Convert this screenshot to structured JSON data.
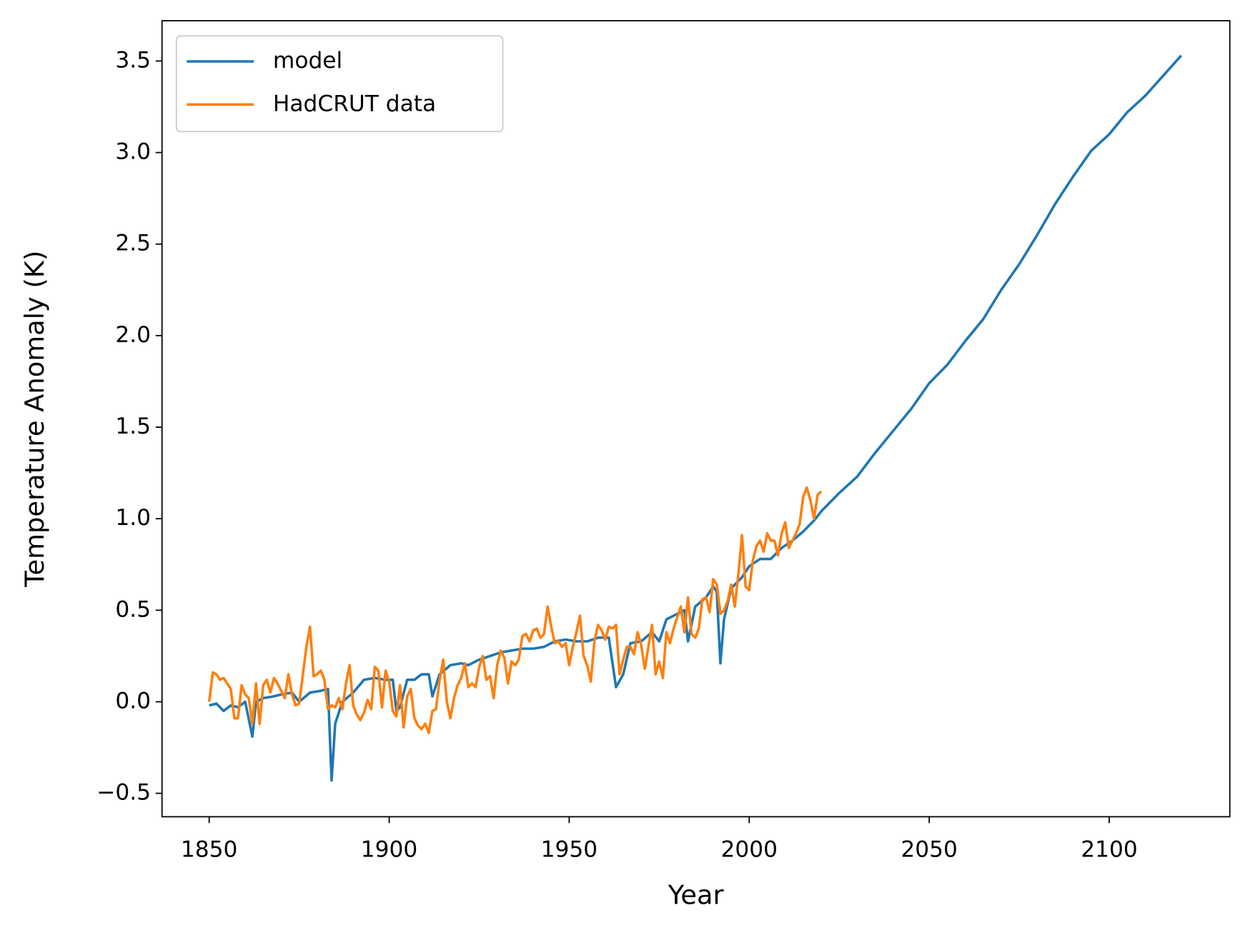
{
  "chart_data": {
    "type": "line",
    "x_label": "Year",
    "y_label": "Temperature Anomaly (K)",
    "xlim": [
      1836.9,
      2133.5
    ],
    "ylim": [
      -0.628,
      3.72
    ],
    "xticks": [
      1850,
      1900,
      1950,
      2000,
      2050,
      2100
    ],
    "yticks": [
      {
        "value": -0.5,
        "label": "−0.5"
      },
      {
        "value": 0,
        "label": "0.0"
      },
      {
        "value": 0.5,
        "label": "0.5"
      },
      {
        "value": 1,
        "label": "1.0"
      },
      {
        "value": 1.5,
        "label": "1.5"
      },
      {
        "value": 2,
        "label": "2.0"
      },
      {
        "value": 2.5,
        "label": "2.5"
      },
      {
        "value": 3,
        "label": "3.0"
      },
      {
        "value": 3.5,
        "label": "3.5"
      }
    ],
    "legend": "upper left",
    "series": [
      {
        "name": "model",
        "color": "#1f77b4",
        "x": [
          1850,
          1852,
          1854,
          1856,
          1858,
          1860,
          1862,
          1863,
          1865,
          1868,
          1870,
          1873,
          1875,
          1878,
          1881,
          1883,
          1884,
          1885,
          1887,
          1890,
          1893,
          1896,
          1899,
          1901,
          1902,
          1903,
          1905,
          1907,
          1909,
          1911,
          1912,
          1914,
          1917,
          1920,
          1922,
          1925,
          1928,
          1931,
          1934,
          1937,
          1940,
          1943,
          1946,
          1949,
          1952,
          1955,
          1958,
          1961,
          1963,
          1965,
          1967,
          1970,
          1973,
          1975,
          1977,
          1980,
          1982,
          1983,
          1985,
          1988,
          1990,
          1991,
          1992,
          1993,
          1995,
          1998,
          2000,
          2003,
          2006,
          2009,
          2012,
          2015,
          2018,
          2020,
          2025,
          2030,
          2035,
          2040,
          2045,
          2050,
          2055,
          2060,
          2065,
          2070,
          2075,
          2080,
          2085,
          2090,
          2095,
          2100,
          2105,
          2110,
          2115,
          2120
        ],
        "values": [
          -0.02,
          -0.01,
          -0.05,
          -0.02,
          -0.03,
          0.0,
          -0.19,
          0.0,
          0.02,
          0.03,
          0.04,
          0.05,
          0.0,
          0.05,
          0.06,
          0.07,
          -0.43,
          -0.12,
          0.0,
          0.05,
          0.12,
          0.13,
          0.12,
          0.12,
          -0.05,
          -0.03,
          0.12,
          0.12,
          0.15,
          0.15,
          0.03,
          0.15,
          0.2,
          0.21,
          0.2,
          0.23,
          0.25,
          0.27,
          0.28,
          0.29,
          0.29,
          0.3,
          0.33,
          0.34,
          0.33,
          0.33,
          0.35,
          0.35,
          0.08,
          0.15,
          0.32,
          0.33,
          0.38,
          0.33,
          0.45,
          0.48,
          0.5,
          0.33,
          0.52,
          0.57,
          0.63,
          0.6,
          0.21,
          0.45,
          0.62,
          0.68,
          0.74,
          0.78,
          0.78,
          0.84,
          0.88,
          0.93,
          0.99,
          1.04,
          1.14,
          1.23,
          1.36,
          1.48,
          1.6,
          1.74,
          1.84,
          1.97,
          2.09,
          2.25,
          2.39,
          2.55,
          2.72,
          2.87,
          3.01,
          3.1,
          3.22,
          3.31,
          3.42,
          3.53
        ]
      },
      {
        "name": "HadCRUT data",
        "color": "#ff7f0e",
        "x": [
          1850,
          1851,
          1852,
          1853,
          1854,
          1856,
          1857,
          1858,
          1859,
          1860,
          1861,
          1862,
          1863,
          1864,
          1865,
          1866,
          1867,
          1868,
          1869,
          1870,
          1871,
          1872,
          1873,
          1874,
          1875,
          1877,
          1878,
          1879,
          1880,
          1881,
          1882,
          1883,
          1884,
          1885,
          1886,
          1887,
          1888,
          1889,
          1890,
          1891,
          1892,
          1893,
          1894,
          1895,
          1896,
          1897,
          1898,
          1899,
          1900,
          1901,
          1902,
          1903,
          1904,
          1905,
          1906,
          1907,
          1908,
          1909,
          1910,
          1911,
          1912,
          1913,
          1914,
          1915,
          1916,
          1917,
          1918,
          1919,
          1920,
          1921,
          1922,
          1923,
          1924,
          1925,
          1926,
          1927,
          1928,
          1929,
          1930,
          1931,
          1932,
          1933,
          1934,
          1935,
          1936,
          1937,
          1938,
          1939,
          1940,
          1941,
          1942,
          1943,
          1944,
          1945,
          1946,
          1947,
          1948,
          1949,
          1950,
          1951,
          1952,
          1953,
          1954,
          1955,
          1956,
          1957,
          1958,
          1959,
          1960,
          1961,
          1962,
          1963,
          1964,
          1965,
          1966,
          1967,
          1968,
          1969,
          1970,
          1971,
          1972,
          1973,
          1974,
          1975,
          1976,
          1977,
          1978,
          1979,
          1980,
          1981,
          1982,
          1983,
          1984,
          1985,
          1986,
          1987,
          1988,
          1989,
          1990,
          1991,
          1992,
          1993,
          1994,
          1995,
          1996,
          1997,
          1998,
          1999,
          2000,
          2001,
          2002,
          2003,
          2004,
          2005,
          2006,
          2007,
          2008,
          2009,
          2010,
          2011,
          2012,
          2013,
          2014,
          2015,
          2016,
          2017,
          2018,
          2019,
          2020
        ],
        "values": [
          0.0,
          0.16,
          0.15,
          0.12,
          0.13,
          0.07,
          -0.09,
          -0.09,
          0.09,
          0.04,
          0.02,
          -0.12,
          0.1,
          -0.12,
          0.09,
          0.12,
          0.05,
          0.13,
          0.1,
          0.06,
          0.02,
          0.15,
          0.04,
          -0.02,
          -0.01,
          0.3,
          0.41,
          0.14,
          0.15,
          0.17,
          0.12,
          -0.04,
          -0.02,
          -0.03,
          0.02,
          -0.04,
          0.1,
          0.2,
          -0.02,
          -0.07,
          -0.1,
          -0.06,
          0.01,
          -0.04,
          0.19,
          0.17,
          -0.03,
          0.17,
          0.11,
          -0.05,
          -0.08,
          0.09,
          -0.14,
          0.03,
          0.07,
          -0.09,
          -0.13,
          -0.15,
          -0.12,
          -0.17,
          -0.05,
          -0.04,
          0.12,
          0.23,
          0.0,
          -0.09,
          0.02,
          0.09,
          0.13,
          0.21,
          0.08,
          0.1,
          0.08,
          0.19,
          0.25,
          0.12,
          0.14,
          0.02,
          0.2,
          0.28,
          0.24,
          0.1,
          0.22,
          0.2,
          0.23,
          0.36,
          0.37,
          0.33,
          0.39,
          0.4,
          0.35,
          0.37,
          0.52,
          0.41,
          0.32,
          0.33,
          0.3,
          0.32,
          0.2,
          0.3,
          0.38,
          0.47,
          0.25,
          0.2,
          0.11,
          0.33,
          0.42,
          0.39,
          0.34,
          0.41,
          0.4,
          0.42,
          0.15,
          0.23,
          0.3,
          0.3,
          0.26,
          0.38,
          0.31,
          0.18,
          0.3,
          0.42,
          0.15,
          0.22,
          0.13,
          0.38,
          0.32,
          0.4,
          0.46,
          0.52,
          0.38,
          0.57,
          0.37,
          0.35,
          0.4,
          0.56,
          0.57,
          0.49,
          0.67,
          0.64,
          0.48,
          0.5,
          0.55,
          0.64,
          0.52,
          0.7,
          0.91,
          0.63,
          0.61,
          0.77,
          0.85,
          0.88,
          0.82,
          0.92,
          0.88,
          0.88,
          0.8,
          0.92,
          0.98,
          0.84,
          0.88,
          0.92,
          0.97,
          1.12,
          1.17,
          1.1,
          1.0,
          1.13,
          1.15
        ]
      }
    ]
  }
}
